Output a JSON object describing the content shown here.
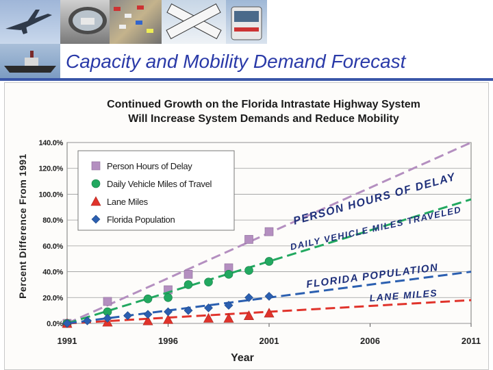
{
  "slide": {
    "title": "Capacity and Mobility Demand Forecast"
  },
  "photos": [
    "airplane-photo",
    "truck-mirror-photo",
    "traffic-photo",
    "railroad-crossing-photo",
    "bus-photo",
    "ship-photo"
  ],
  "chart_data": {
    "type": "scatter",
    "title_line1": "Continued Growth on the Florida Intrastate Highway System",
    "title_line2": "Will Increase System Demands and Reduce Mobility",
    "xlabel": "Year",
    "ylabel": "Percent Difference From 1991",
    "xlim": [
      1991,
      2011
    ],
    "ylim": [
      0,
      140
    ],
    "x_ticks": [
      "1991",
      "1996",
      "2001",
      "2006",
      "2011"
    ],
    "y_ticks": [
      "0.0%",
      "20.0%",
      "40.0%",
      "60.0%",
      "80.0%",
      "100.0%",
      "120.0%",
      "140.0%"
    ],
    "grid": "horizontal",
    "legend_position": "top-left",
    "series": [
      {
        "name": "Person Hours of Delay",
        "marker": "square",
        "color": "#b48fc0",
        "x": [
          1991,
          1993,
          1996,
          1997,
          1999,
          2000,
          2001
        ],
        "y": [
          0,
          17,
          26,
          38,
          43,
          65,
          71
        ],
        "trend": [
          [
            1991,
            0
          ],
          [
            2011,
            140
          ]
        ],
        "trend_label": "PERSON HOURS OF DELAY"
      },
      {
        "name": "Daily Vehicle Miles of Travel",
        "marker": "circle",
        "color": "#22a860",
        "x": [
          1991,
          1993,
          1995,
          1996,
          1997,
          1998,
          1999,
          2000,
          2001
        ],
        "y": [
          0,
          9,
          19,
          20,
          30,
          32,
          38,
          41,
          48
        ],
        "trend": [
          [
            1991,
            0
          ],
          [
            2011,
            96
          ]
        ],
        "trend_label": "DAILY VEHICLE MILES TRAVELED"
      },
      {
        "name": "Lane Miles",
        "marker": "triangle",
        "color": "#e0332b",
        "x": [
          1991,
          1993,
          1995,
          1996,
          1998,
          1999,
          2000,
          2001
        ],
        "y": [
          0,
          1,
          2,
          3,
          4,
          4,
          6,
          8
        ],
        "trend": [
          [
            1991,
            0
          ],
          [
            2011,
            18
          ]
        ],
        "trend_label": "LANE MILES"
      },
      {
        "name": "Florida Population",
        "marker": "diamond",
        "color": "#2b5fb0",
        "x": [
          1991,
          1992,
          1993,
          1994,
          1995,
          1996,
          1997,
          1998,
          1999,
          2000,
          2001
        ],
        "y": [
          0,
          2,
          4,
          6,
          7,
          9,
          10,
          12,
          14,
          20,
          21
        ],
        "trend": [
          [
            1991,
            0
          ],
          [
            2011,
            40
          ]
        ],
        "trend_label": "FLORIDA POPULATION"
      }
    ]
  }
}
